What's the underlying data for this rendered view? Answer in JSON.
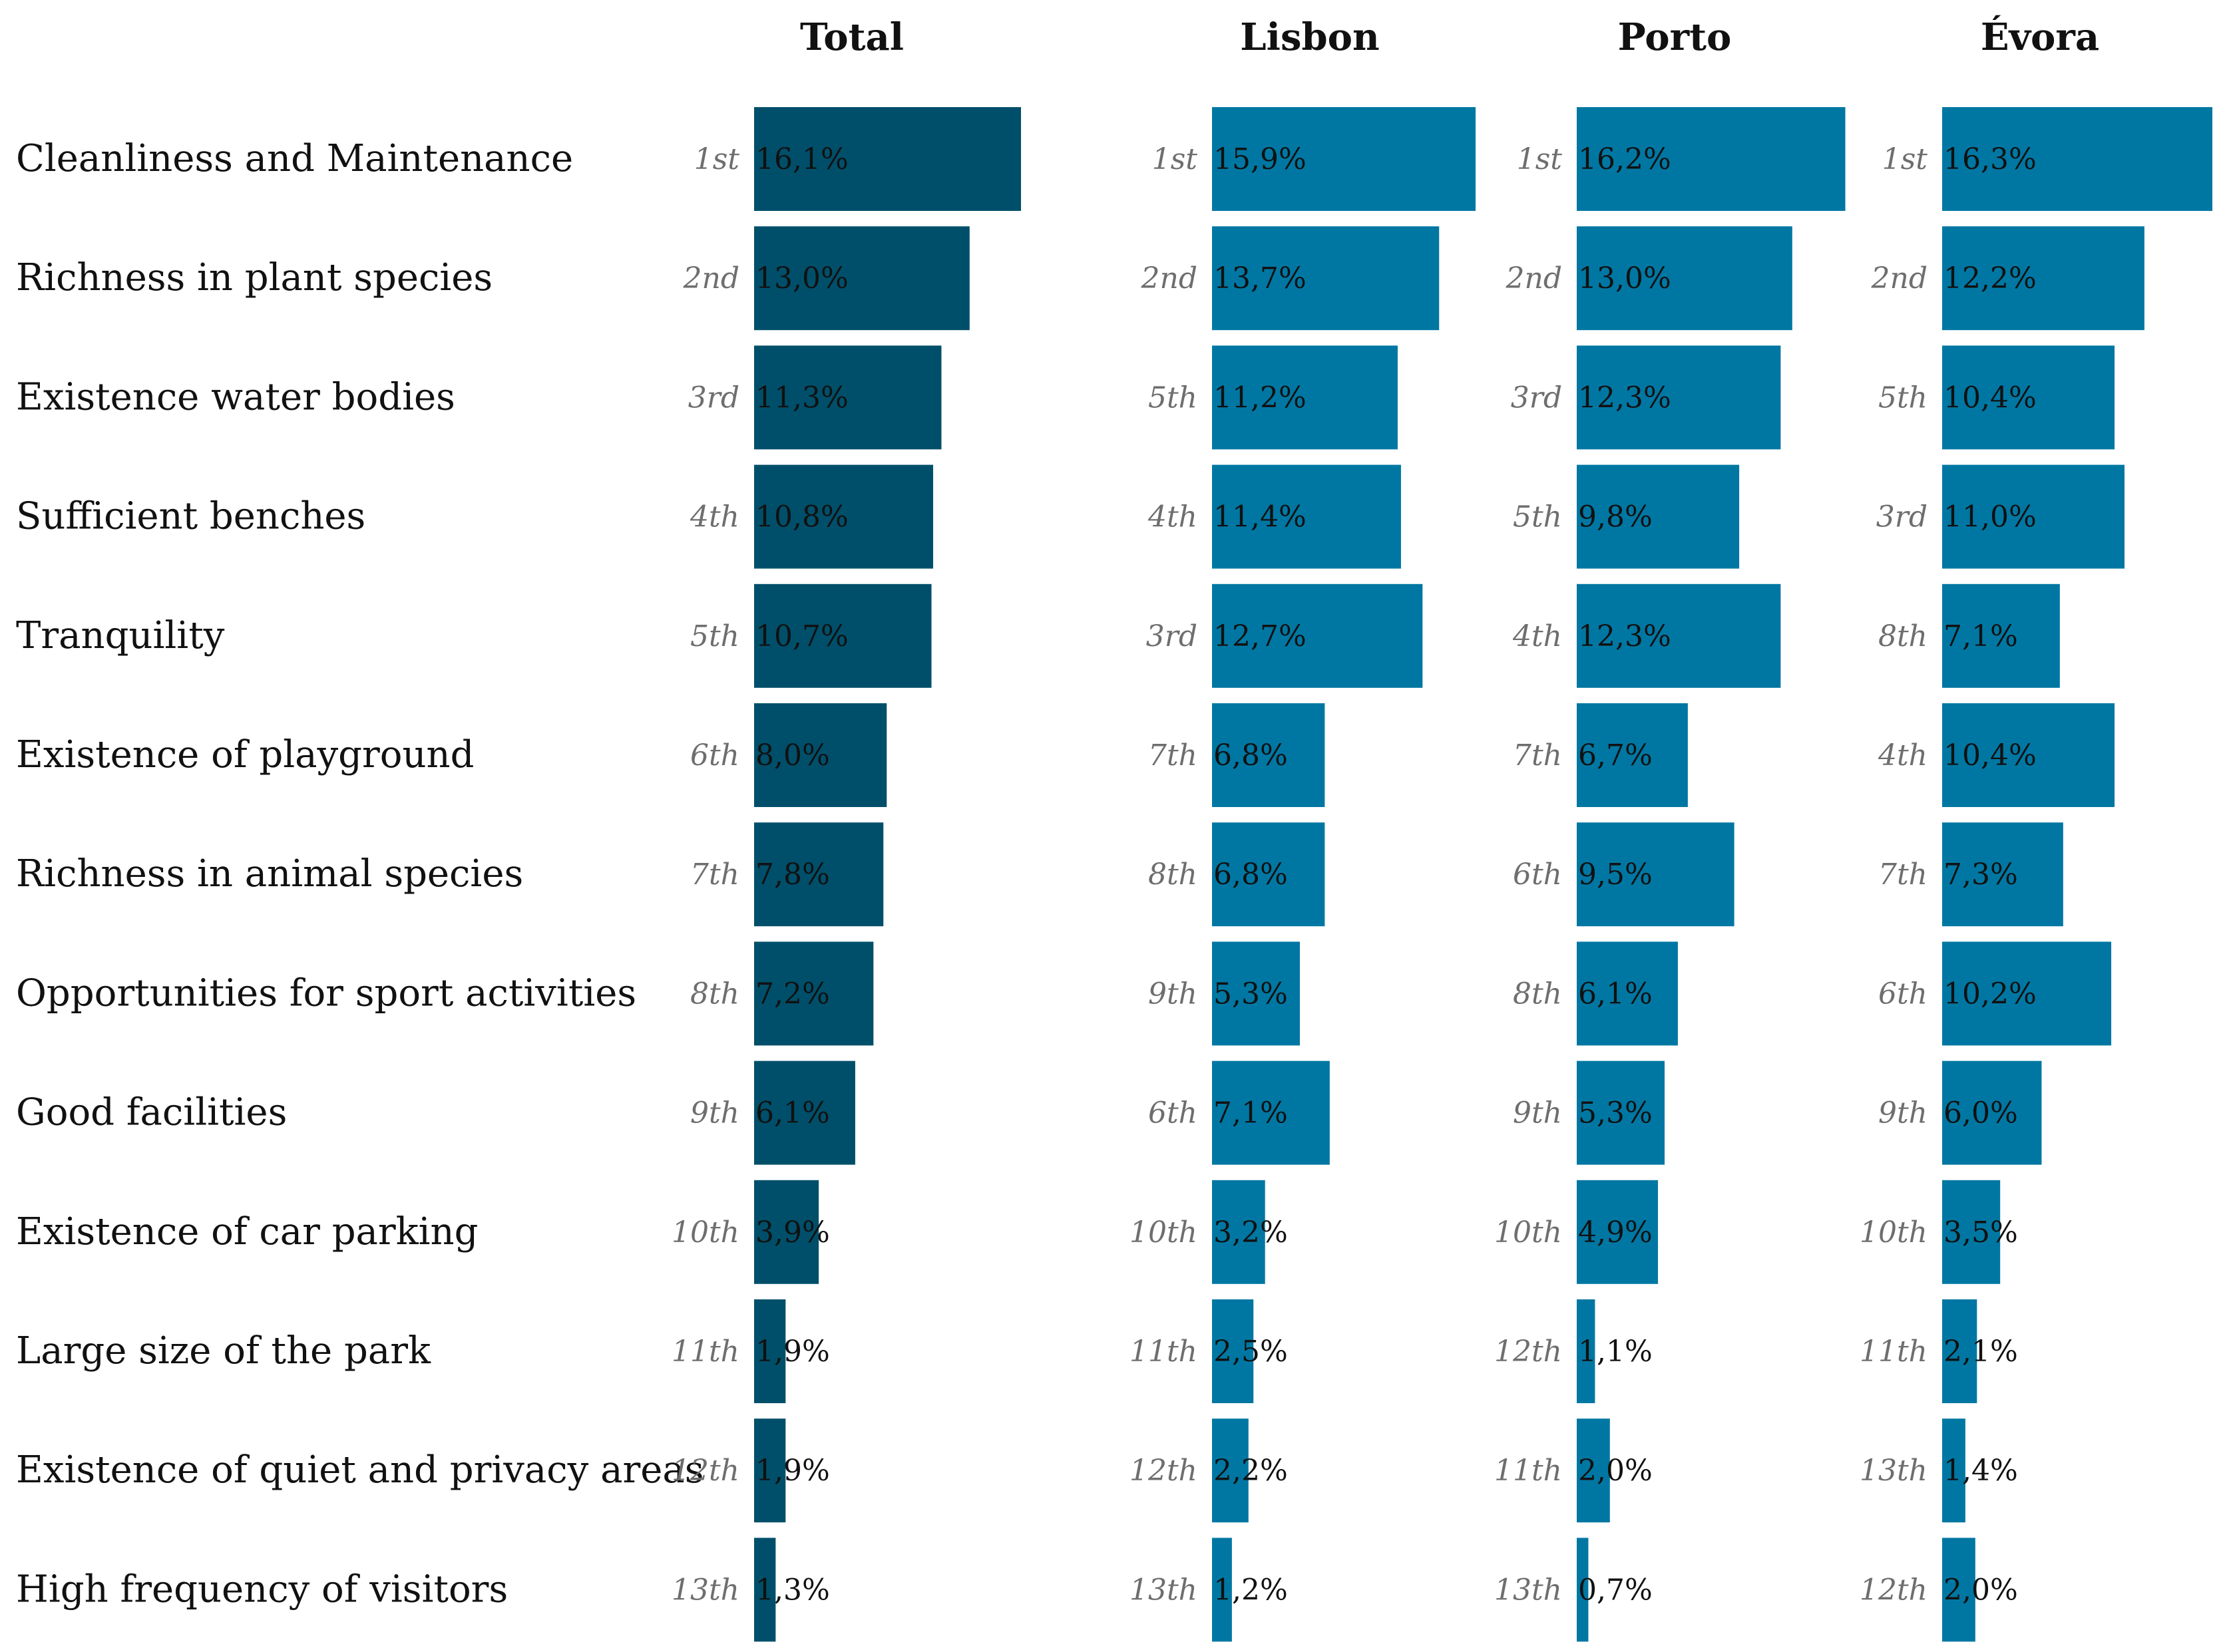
{
  "chart_data": {
    "type": "bar",
    "orientation": "horizontal",
    "title": "",
    "categories": [
      "Cleanliness and Maintenance",
      "Richness in plant species",
      "Existence water bodies",
      "Sufficient benches",
      "Tranquility",
      "Existence of playground",
      "Richness in animal species",
      "Opportunities for sport activities",
      "Good facilities",
      "Existence of car parking",
      "Large size of the park",
      "Existence of quiet and privacy areas",
      "High frequency of visitors"
    ],
    "series": [
      {
        "name": "Total",
        "color": "#004f6a",
        "values": [
          16.1,
          13.0,
          11.3,
          10.8,
          10.7,
          8.0,
          7.8,
          7.2,
          6.1,
          3.9,
          1.9,
          1.9,
          1.3
        ],
        "labels": [
          "16,1%",
          "13,0%",
          "11,3%",
          "10,8%",
          "10,7%",
          "8,0%",
          "7,8%",
          "7,2%",
          "6,1%",
          "3,9%",
          "1,9%",
          "1,9%",
          "1,3%"
        ],
        "ranks": [
          "1st",
          "2nd",
          "3rd",
          "4th",
          "5th",
          "6th",
          "7th",
          "8th",
          "9th",
          "10th",
          "11th",
          "12th",
          "13th"
        ]
      },
      {
        "name": "Lisbon",
        "color": "#0077a3",
        "values": [
          15.9,
          13.7,
          11.2,
          11.4,
          12.7,
          6.8,
          6.8,
          5.3,
          7.1,
          3.2,
          2.5,
          2.2,
          1.2
        ],
        "labels": [
          "15,9%",
          "13,7%",
          "11,2%",
          "11,4%",
          "12,7%",
          "6,8%",
          "6,8%",
          "5,3%",
          "7,1%",
          "3,2%",
          "2,5%",
          "2,2%",
          "1,2%"
        ],
        "ranks": [
          "1st",
          "2nd",
          "5th",
          "4th",
          "3rd",
          "7th",
          "8th",
          "9th",
          "6th",
          "10th",
          "11th",
          "12th",
          "13th"
        ]
      },
      {
        "name": "Porto",
        "color": "#0077a3",
        "values": [
          16.2,
          13.0,
          12.3,
          9.8,
          12.3,
          6.7,
          9.5,
          6.1,
          5.3,
          4.9,
          1.1,
          2.0,
          0.7
        ],
        "labels": [
          "16,2%",
          "13,0%",
          "12,3%",
          "9,8%",
          "12,3%",
          "6,7%",
          "9,5%",
          "6,1%",
          "5,3%",
          "4,9%",
          "1,1%",
          "2,0%",
          "0,7%"
        ],
        "ranks": [
          "1st",
          "2nd",
          "3rd",
          "5th",
          "4th",
          "7th",
          "6th",
          "8th",
          "9th",
          "10th",
          "12th",
          "11th",
          "13th"
        ]
      },
      {
        "name": "Évora",
        "color": "#0077a3",
        "values": [
          16.3,
          12.2,
          10.4,
          11.0,
          7.1,
          10.4,
          7.3,
          10.2,
          6.0,
          3.5,
          2.1,
          1.4,
          2.0
        ],
        "labels": [
          "16,3%",
          "12,2%",
          "10,4%",
          "11,0%",
          "7,1%",
          "10,4%",
          "7,3%",
          "10,2%",
          "6,0%",
          "3,5%",
          "2,1%",
          "1,4%",
          "2,0%"
        ],
        "ranks": [
          "1st",
          "2nd",
          "5th",
          "3rd",
          "8th",
          "4th",
          "7th",
          "6th",
          "9th",
          "10th",
          "11th",
          "13th",
          "12th"
        ]
      }
    ],
    "xlim": [
      0,
      16.3
    ],
    "grid": false,
    "legend": "none"
  }
}
